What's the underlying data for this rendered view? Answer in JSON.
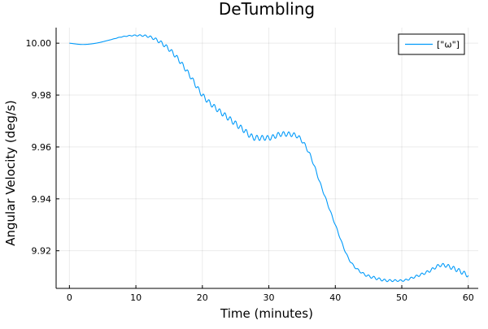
{
  "chart_data": {
    "type": "line",
    "title": "DeTumbling",
    "xlabel": "Time (minutes)",
    "ylabel": "Angular Velocity (deg/s)",
    "xlim": [
      -2,
      61.5
    ],
    "ylim": [
      9.9055,
      10.006
    ],
    "x_ticks": [
      0,
      10,
      20,
      30,
      40,
      50,
      60
    ],
    "x_tick_labels": [
      "0",
      "10",
      "20",
      "30",
      "40",
      "50",
      "60"
    ],
    "y_ticks": [
      9.92,
      9.94,
      9.96,
      9.98,
      10.0
    ],
    "y_tick_labels": [
      "9.92",
      "9.94",
      "9.96",
      "9.98",
      "10.00"
    ],
    "grid": true,
    "legend_position": "top-right",
    "line_color": "#009AFA",
    "series": [
      {
        "name": "[\"ω\"]",
        "x": [
          0,
          2,
          4,
          6,
          8,
          10,
          12,
          14,
          16,
          18,
          20,
          22,
          24,
          26,
          28,
          30,
          32,
          34,
          36,
          38,
          40,
          42,
          44,
          46,
          48,
          50,
          52,
          54,
          56,
          58,
          60
        ],
        "y": [
          10.0,
          9.9995,
          10.0,
          10.0012,
          10.0025,
          10.003,
          10.0025,
          9.9998,
          9.995,
          9.988,
          9.98,
          9.975,
          9.971,
          9.967,
          9.9635,
          9.9635,
          9.965,
          9.9645,
          9.958,
          9.944,
          9.93,
          9.917,
          9.9115,
          9.9095,
          9.9085,
          9.9085,
          9.91,
          9.912,
          9.9145,
          9.913,
          9.9105
        ],
        "oscillation_amplitude": [
          0.0,
          0.0,
          0.0,
          0.0,
          0.0001,
          0.0002,
          0.0004,
          0.0007,
          0.0008,
          0.0008,
          0.0009,
          0.0009,
          0.001,
          0.001,
          0.001,
          0.0009,
          0.0009,
          0.0008,
          0.0006,
          0.0004,
          0.0003,
          0.0003,
          0.0004,
          0.0005,
          0.0004,
          0.0003,
          0.0004,
          0.0005,
          0.0006,
          0.0008,
          0.0008
        ],
        "oscillation_period_minutes": 0.8
      }
    ]
  }
}
